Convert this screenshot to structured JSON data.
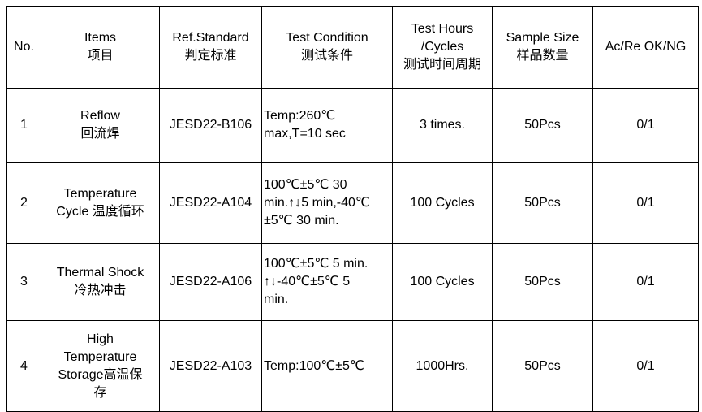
{
  "table": {
    "header": [
      [
        "No."
      ],
      [
        "Items",
        "项目"
      ],
      [
        "Ref.Standard",
        "判定标准"
      ],
      [
        "Test Condition",
        "测试条件"
      ],
      [
        "Test Hours",
        "/Cycles",
        "测试时间周期"
      ],
      [
        "Sample Size",
        "样品数量"
      ],
      [
        "Ac/Re OK/NG"
      ]
    ],
    "rows": [
      [
        [
          "1"
        ],
        [
          "Reflow",
          "回流焊"
        ],
        [
          "JESD22-B106"
        ],
        [
          "Temp:260℃",
          "max,T=10 sec"
        ],
        [
          "3 times."
        ],
        [
          "50Pcs"
        ],
        [
          "0/1"
        ]
      ],
      [
        [
          "2"
        ],
        [
          "Temperature",
          "Cycle  温度循环"
        ],
        [
          "JESD22-A104"
        ],
        [
          "100℃±5℃ 30",
          "min.↑↓5 min,-40℃",
          "±5℃ 30 min."
        ],
        [
          "100 Cycles"
        ],
        [
          "50Pcs"
        ],
        [
          "0/1"
        ]
      ],
      [
        [
          "3"
        ],
        [
          "Thermal Shock",
          "冷热冲击"
        ],
        [
          "JESD22-A106"
        ],
        [
          "100℃±5℃ 5 min.",
          "↑↓-40℃±5℃ 5",
          "min."
        ],
        [
          "100 Cycles"
        ],
        [
          "50Pcs"
        ],
        [
          "0/1"
        ]
      ],
      [
        [
          "4"
        ],
        [
          "High",
          "Temperature",
          "Storage高温保",
          "存"
        ],
        [
          "JESD22-A103"
        ],
        [
          "Temp:100℃±5℃"
        ],
        [
          "1000Hrs."
        ],
        [
          "50Pcs"
        ],
        [
          "0/1"
        ]
      ]
    ]
  }
}
